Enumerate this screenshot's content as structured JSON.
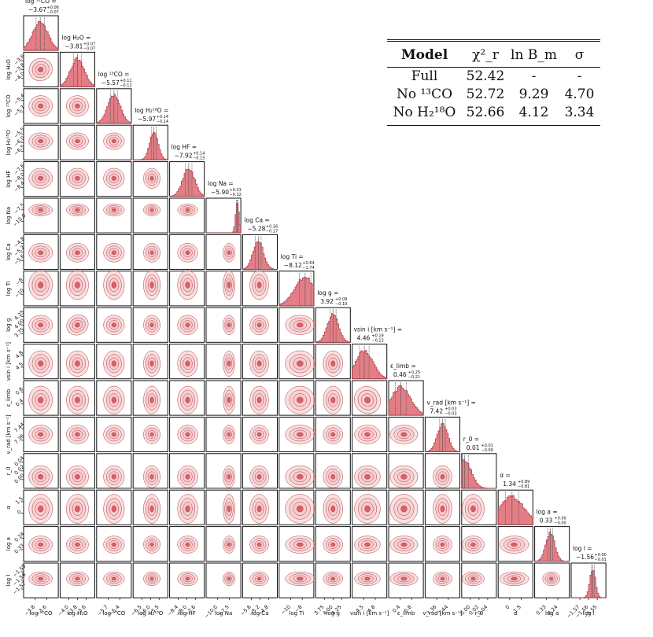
{
  "chart_data": {
    "type": "corner",
    "colors": {
      "fill": "#d9535d",
      "edge": "#b13c45",
      "light": "#f4c6c8",
      "axes": "#111111"
    },
    "parameters": [
      {
        "key": "log12CO",
        "title": "log ¹²CO  =",
        "value": "−3.67",
        "err_up": "+0.06",
        "err_dn": "−0.07",
        "xlabel": "log ¹²CO",
        "ylabel": "log ¹²CO",
        "ticks": [
          "−3.8",
          "−3.6"
        ],
        "hist_peak": 0.48,
        "hist_width": 0.22
      },
      {
        "key": "logH2O",
        "title": "log H₂O  =",
        "value": "−3.81",
        "err_up": "+0.07",
        "err_dn": "−0.07",
        "xlabel": "log H₂O",
        "ylabel": "log H₂O",
        "ticks": [
          "−4.0",
          "−3.8",
          "−3.6"
        ],
        "hist_peak": 0.5,
        "hist_width": 0.2
      },
      {
        "key": "log13CO",
        "title": "log ¹³CO  =",
        "value": "−5.57",
        "err_up": "+0.11",
        "err_dn": "−0.12",
        "xlabel": "log ¹³CO",
        "ylabel": "log ¹³CO",
        "ticks": [
          "−5.7",
          "−5.4"
        ],
        "hist_peak": 0.5,
        "hist_width": 0.18
      },
      {
        "key": "logH218O",
        "title": "log H₂¹⁸O  =",
        "value": "−5.97",
        "err_up": "+0.14",
        "err_dn": "−0.14",
        "xlabel": "log H₂¹⁸O",
        "ylabel": "log H₂¹⁸O",
        "ticks": [
          "−6.5",
          "−6.0",
          "−5.5"
        ],
        "hist_peak": 0.6,
        "hist_width": 0.12
      },
      {
        "key": "logHF",
        "title": "log HF  =",
        "value": "−7.92",
        "err_up": "+0.14",
        "err_dn": "−0.15",
        "xlabel": "log HF",
        "ylabel": "log HF",
        "ticks": [
          "−8.4",
          "−8.0",
          "−7.6"
        ],
        "hist_peak": 0.55,
        "hist_width": 0.17
      },
      {
        "key": "logNa",
        "title": "log Na  =",
        "value": "−5.90",
        "err_up": "+0.31",
        "err_dn": "−0.32",
        "xlabel": "log Na",
        "ylabel": "log Na",
        "ticks": [
          "−10.0",
          "−7.5"
        ],
        "hist_peak": 0.9,
        "hist_width": 0.05
      },
      {
        "key": "logCa",
        "title": "log Ca  =",
        "value": "−5.28",
        "err_up": "+0.16",
        "err_dn": "−0.17",
        "xlabel": "log Ca",
        "ylabel": "log Ca",
        "ticks": [
          "−5.6",
          "−5.2",
          "−4.8"
        ],
        "hist_peak": 0.45,
        "hist_width": 0.15
      },
      {
        "key": "logTi",
        "title": "log Ti  =",
        "value": "−8.12",
        "err_up": "+0.64",
        "err_dn": "−1.74",
        "xlabel": "log Ti",
        "ylabel": "log Ti",
        "ticks": [
          "−10",
          "−8"
        ],
        "hist_peak": 0.75,
        "hist_width": 0.3
      },
      {
        "key": "logg",
        "title": "log g  =",
        "value": "3.92",
        "err_up": "+0.09",
        "err_dn": "−0.10",
        "xlabel": "log g",
        "ylabel": "log g",
        "ticks": [
          "3.75",
          "4.00",
          "4.25"
        ],
        "hist_peak": 0.5,
        "hist_width": 0.16
      },
      {
        "key": "vsini",
        "title": "vsin i  [km s⁻¹]  =",
        "value": "4.46",
        "err_up": "+0.19",
        "err_dn": "−0.13",
        "xlabel": "vsin i  [km s⁻¹]",
        "ylabel": "vsin i  [km s⁻¹]",
        "ticks": [
          "4.5",
          "4.8"
        ],
        "hist_peak": 0.35,
        "hist_width": 0.25
      },
      {
        "key": "elimb",
        "title": "ε_limb  =",
        "value": "0.46",
        "err_up": "+0.25",
        "err_dn": "−0.21",
        "xlabel": "ε_limb",
        "ylabel": "ε_limb",
        "ticks": [
          "0.4",
          "0.8"
        ],
        "hist_peak": 0.35,
        "hist_width": 0.28
      },
      {
        "key": "vrad",
        "title": "v_rad  [km s⁻¹]  =",
        "value": "7.42",
        "err_up": "+0.03",
        "err_dn": "−0.03",
        "xlabel": "v_rad  [km s⁻¹]",
        "ylabel": "v_rad  [km s⁻¹]",
        "ticks": [
          "7.36",
          "7.44"
        ],
        "hist_peak": 0.5,
        "hist_width": 0.15
      },
      {
        "key": "r0",
        "title": "r_0  =",
        "value": "0.01",
        "err_up": "+0.01",
        "err_dn": "−0.00",
        "xlabel": "r_0",
        "ylabel": "r_0",
        "ticks": [
          "0.00",
          "0.02",
          "0.04"
        ],
        "hist_peak": 0.08,
        "hist_width": 0.2
      },
      {
        "key": "alpha",
        "title": "α  =",
        "value": "1.34",
        "err_up": "+0.89",
        "err_dn": "−0.81",
        "xlabel": "α",
        "ylabel": "α",
        "ticks": [
          "0",
          "1.5"
        ],
        "hist_peak": 0.4,
        "hist_width": 0.35
      },
      {
        "key": "loga",
        "title": "log a  =",
        "value": "0.33",
        "err_up": "+0.00",
        "err_dn": "−0.00",
        "xlabel": "log a",
        "ylabel": "log a",
        "ticks": [
          "0.33",
          "0.24"
        ],
        "hist_peak": 0.45,
        "hist_width": 0.13
      },
      {
        "key": "logl",
        "title": "log l  =",
        "value": "−1.56",
        "err_up": "+0.00",
        "err_dn": "−0.01",
        "xlabel": "log l",
        "ylabel": "log l",
        "ticks": [
          "−1.57",
          "−1.56",
          "−1.55"
        ],
        "hist_peak": 0.62,
        "hist_width": 0.08
      }
    ]
  },
  "table": {
    "headers": [
      "Model",
      "χ²_r",
      "ln B_m",
      "σ"
    ],
    "rows": [
      {
        "model": "Full",
        "chi2": "52.42",
        "lnB": "-",
        "sigma": "-"
      },
      {
        "model": "No ¹³CO",
        "chi2": "52.72",
        "lnB": "9.29",
        "sigma": "4.70"
      },
      {
        "model": "No H₂¹⁸O",
        "chi2": "52.66",
        "lnB": "4.12",
        "sigma": "3.34"
      }
    ]
  }
}
